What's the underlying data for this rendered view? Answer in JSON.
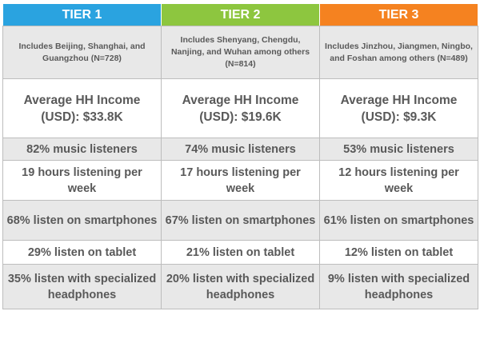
{
  "headers": [
    {
      "label": "TIER 1",
      "color": "#2aa3e0"
    },
    {
      "label": "TIER 2",
      "color": "#8dc63f"
    },
    {
      "label": "TIER 3",
      "color": "#f58220"
    }
  ],
  "rows": {
    "cities": [
      "Includes Beijing, Shanghai, and Guangzhou (N=728)",
      "Includes Shenyang, Chengdu, Nanjing, and Wuhan among others (N=814)",
      "Includes Jinzhou, Jiangmen, Ningbo, and Foshan among others (N=489)"
    ],
    "income": [
      "Average HH Income (USD): $33.8K",
      "Average HH Income (USD): $19.6K",
      "Average HH Income (USD): $9.3K"
    ],
    "listeners": [
      "82% music listeners",
      "74% music listeners",
      "53% music listeners"
    ],
    "hours": [
      "19 hours listening per week",
      "17 hours listening per week",
      "12 hours listening per week"
    ],
    "smartphones": [
      "68% listen on smartphones",
      "67% listen on smartphones",
      "61% listen on smartphones"
    ],
    "tablet": [
      "29% listen on tablet",
      "21% listen on tablet",
      "12% listen on tablet"
    ],
    "headphones": [
      "35% listen with specialized headphones",
      "20% listen with specialized headphones",
      "9% listen with specialized headphones"
    ]
  }
}
